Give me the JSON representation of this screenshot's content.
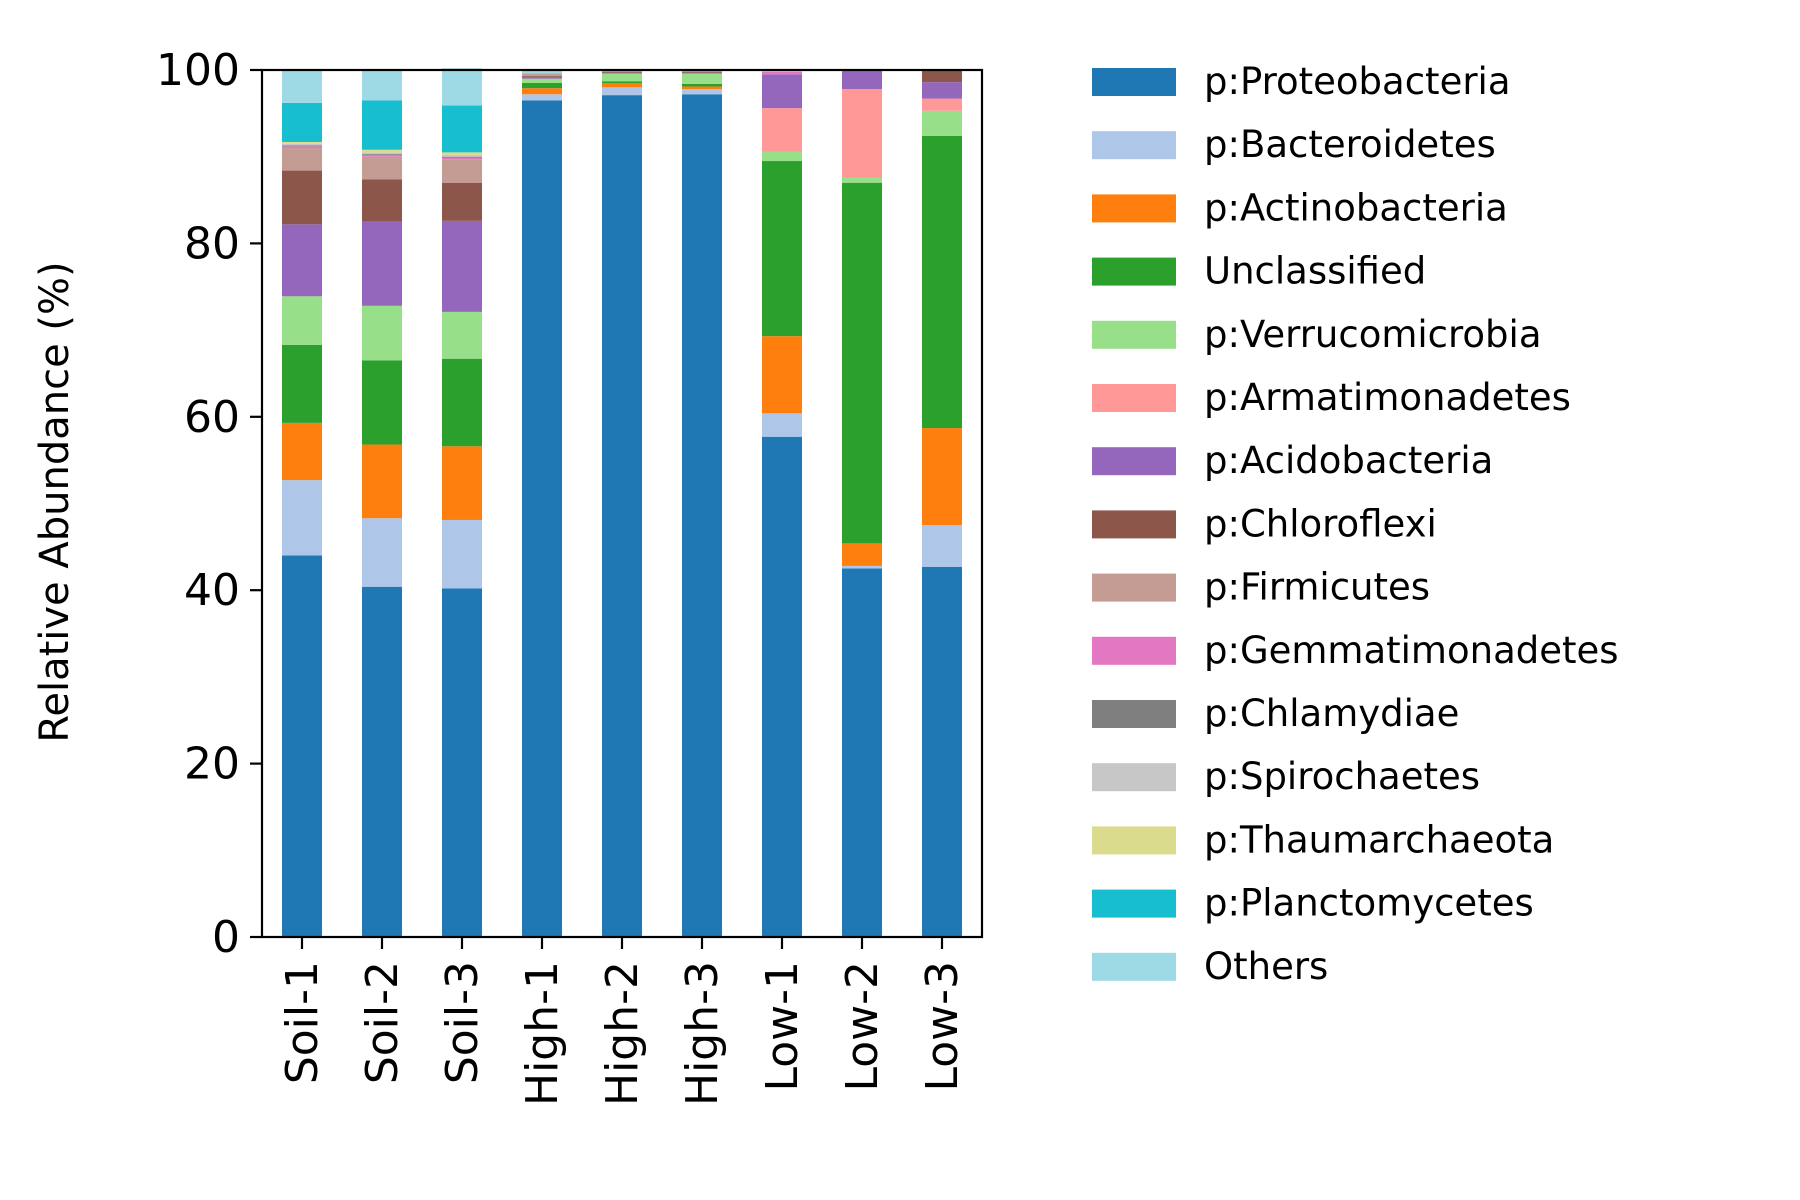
{
  "chart_data": {
    "type": "bar",
    "stacked": true,
    "title": "",
    "xlabel": "",
    "ylabel": "Relative Abundance (%)",
    "ylim": [
      0,
      100
    ],
    "yticks": [
      0,
      20,
      40,
      60,
      80,
      100
    ],
    "grid": false,
    "legend_position": "right",
    "categories": [
      "Soil-1",
      "Soil-2",
      "Soil-3",
      "High-1",
      "High-2",
      "High-3",
      "Low-1",
      "Low-2",
      "Low-3"
    ],
    "series": [
      {
        "name": "p:Proteobacteria",
        "color": "#1f77b4",
        "values": [
          44.0,
          40.4,
          40.2,
          96.5,
          97.1,
          97.2,
          57.7,
          42.5,
          42.7
        ]
      },
      {
        "name": "p:Bacteroidetes",
        "color": "#aec7e8",
        "values": [
          8.7,
          7.9,
          7.9,
          0.7,
          0.9,
          0.6,
          2.7,
          0.3,
          4.8
        ]
      },
      {
        "name": "p:Actinobacteria",
        "color": "#ff7f0e",
        "values": [
          6.6,
          8.5,
          8.5,
          0.7,
          0.5,
          0.3,
          8.9,
          2.6,
          11.2
        ]
      },
      {
        "name": "Unclassified",
        "color": "#2ca02c",
        "values": [
          9.0,
          9.7,
          10.1,
          0.6,
          0.2,
          0.3,
          20.2,
          41.6,
          33.7
        ]
      },
      {
        "name": "p:Verrucomicrobia",
        "color": "#98df8a",
        "values": [
          5.6,
          6.3,
          5.4,
          0.5,
          0.9,
          1.2,
          1.1,
          0.6,
          2.9
        ]
      },
      {
        "name": "p:Armatimonadetes",
        "color": "#ff9896",
        "values": [
          0,
          0,
          0,
          0,
          0,
          0,
          5.0,
          10.2,
          1.4
        ]
      },
      {
        "name": "p:Acidobacteria",
        "color": "#9467bd",
        "values": [
          8.3,
          9.7,
          10.5,
          0.2,
          0.1,
          0.1,
          3.9,
          2.1,
          1.9
        ]
      },
      {
        "name": "p:Chloroflexi",
        "color": "#8c564b",
        "values": [
          6.2,
          4.9,
          4.4,
          0.1,
          0.1,
          0.1,
          0,
          0,
          1.4
        ]
      },
      {
        "name": "p:Firmicutes",
        "color": "#c49c94",
        "values": [
          2.6,
          2.6,
          2.7,
          0.3,
          0.1,
          0.1,
          0,
          0,
          0
        ]
      },
      {
        "name": "p:Gemmatimonadetes",
        "color": "#e377c2",
        "values": [
          0.2,
          0.2,
          0.2,
          0,
          0,
          0,
          0.3,
          0,
          0
        ]
      },
      {
        "name": "p:Chlamydiae",
        "color": "#7f7f7f",
        "values": [
          0.1,
          0.1,
          0.1,
          0,
          0,
          0,
          0,
          0,
          0
        ]
      },
      {
        "name": "p:Spirochaetes",
        "color": "#c7c7c7",
        "values": [
          0.2,
          0.2,
          0.2,
          0,
          0,
          0,
          0,
          0,
          0
        ]
      },
      {
        "name": "p:Thaumarchaeota",
        "color": "#dbdb8d",
        "values": [
          0.2,
          0.3,
          0.3,
          0,
          0,
          0,
          0,
          0,
          0
        ]
      },
      {
        "name": "p:Planctomycetes",
        "color": "#17becf",
        "values": [
          4.5,
          5.7,
          5.4,
          0,
          0,
          0,
          0,
          0,
          0
        ]
      },
      {
        "name": "Others",
        "color": "#9edae5",
        "values": [
          3.8,
          3.5,
          4.3,
          0.4,
          0.1,
          0.1,
          0.2,
          0.1,
          0
        ]
      }
    ]
  }
}
